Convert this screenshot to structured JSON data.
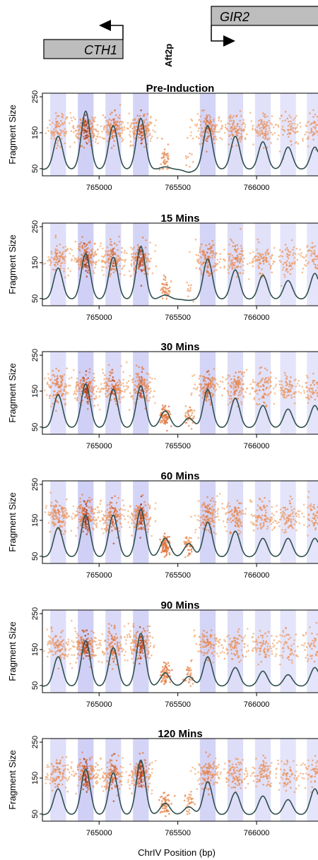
{
  "colors": {
    "band": "#c8c8f4",
    "point_light": "#f3b27e",
    "point_mid": "#e0733a",
    "point_dark": "#8a1f10",
    "curve": "#2f4f4f",
    "gene_box": "#bdbdbd"
  },
  "annotations": {
    "gene_left": "CTH1",
    "gene_right": "GIR2",
    "tf_label": "Aft2p"
  },
  "chart_data": {
    "type": "scatter",
    "ylabel": "Fragment Size",
    "xlabel": "ChrIV Position (bp)",
    "xlim": [
      764640,
      766390
    ],
    "ylim": [
      30,
      260
    ],
    "xticks": [
      765000,
      765500,
      766000
    ],
    "yticks": [
      50,
      150,
      250
    ],
    "tick_labels_x": [
      "765000",
      "765500",
      "766000"
    ],
    "tick_labels_y": [
      "50",
      "150",
      "250"
    ],
    "grid": false,
    "nucleosome_centers": [
      764740,
      764915,
      765090,
      765265,
      765690,
      765865,
      766040,
      766200,
      766370
    ],
    "nucleosome_band_width": 100,
    "nucleosome_band_strength": [
      0.55,
      1.0,
      0.7,
      0.9,
      0.9,
      0.6,
      0.5,
      0.4,
      0.4
    ],
    "nfr_subnucleosomal_centers": [
      765420,
      765570
    ],
    "panels": [
      {
        "title": "Pre-Induction",
        "occupancy_peaks": [
          140,
          210,
          170,
          190,
          170,
          140,
          125,
          110,
          110
        ],
        "nfr_occupancy": [
          55,
          40
        ],
        "point_density": [
          0.5,
          1.0,
          0.8,
          0.9,
          0.8,
          0.6,
          0.5,
          0.4,
          0.4
        ],
        "nfr_point_density": [
          0.35,
          0.08
        ]
      },
      {
        "title": "15 Mins",
        "occupancy_peaks": [
          135,
          175,
          165,
          195,
          160,
          130,
          115,
          100,
          120
        ],
        "nfr_occupancy": [
          60,
          45
        ],
        "point_density": [
          0.55,
          1.0,
          0.8,
          0.95,
          0.75,
          0.6,
          0.5,
          0.4,
          0.4
        ],
        "nfr_point_density": [
          0.4,
          0.1
        ]
      },
      {
        "title": "30 Mins",
        "occupancy_peaks": [
          140,
          170,
          155,
          165,
          155,
          130,
          110,
          100,
          110
        ],
        "nfr_occupancy": [
          95,
          75
        ],
        "point_density": [
          0.7,
          1.0,
          0.85,
          0.85,
          0.8,
          0.65,
          0.55,
          0.45,
          0.45
        ],
        "nfr_point_density": [
          0.65,
          0.35
        ]
      },
      {
        "title": "60 Mins",
        "occupancy_peaks": [
          130,
          165,
          165,
          180,
          145,
          120,
          100,
          100,
          100
        ],
        "nfr_occupancy": [
          100,
          85
        ],
        "point_density": [
          0.7,
          1.0,
          0.85,
          0.95,
          0.75,
          0.6,
          0.55,
          0.45,
          0.45
        ],
        "nfr_point_density": [
          0.7,
          0.4
        ]
      },
      {
        "title": "90 Mins",
        "occupancy_peaks": [
          130,
          175,
          155,
          195,
          130,
          100,
          90,
          80,
          100
        ],
        "nfr_occupancy": [
          85,
          75
        ],
        "point_density": [
          0.6,
          1.0,
          0.75,
          0.95,
          0.6,
          0.5,
          0.45,
          0.35,
          0.35
        ],
        "nfr_point_density": [
          0.55,
          0.3
        ]
      },
      {
        "title": "120 Mins",
        "occupancy_peaks": [
          120,
          175,
          165,
          200,
          140,
          110,
          100,
          90,
          120
        ],
        "nfr_occupancy": [
          80,
          70
        ],
        "point_density": [
          0.6,
          1.0,
          0.85,
          1.0,
          0.7,
          0.55,
          0.5,
          0.4,
          0.4
        ],
        "nfr_point_density": [
          0.5,
          0.3
        ]
      }
    ]
  }
}
